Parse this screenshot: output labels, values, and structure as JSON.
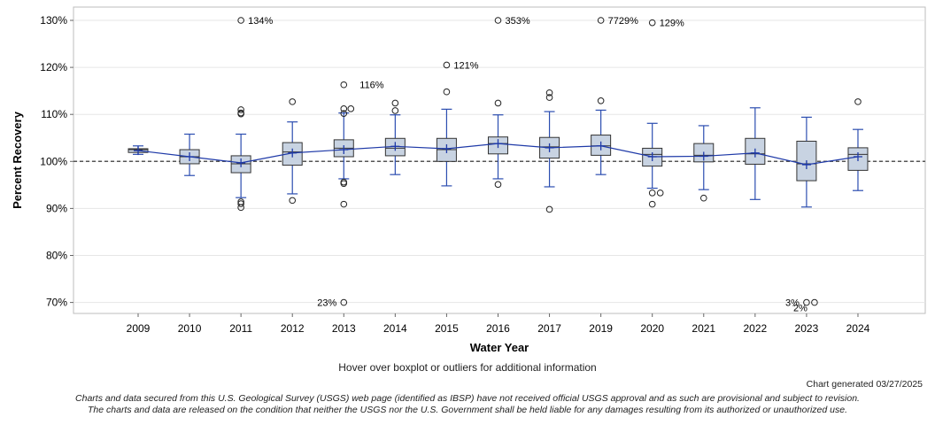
{
  "chart_data": {
    "type": "boxplot",
    "xlabel": "Water Year",
    "ylabel": "Percent Recovery",
    "ylim": [
      68,
      132
    ],
    "yticks": [
      70,
      80,
      90,
      100,
      110,
      120,
      130
    ],
    "ytick_labels": [
      "70%",
      "80%",
      "90%",
      "100%",
      "110%",
      "120%",
      "130%"
    ],
    "reference_line": 100,
    "categories": [
      "2009",
      "2010",
      "2011",
      "2012",
      "2013",
      "2014",
      "2015",
      "2016",
      "2017",
      "2019",
      "2020",
      "2021",
      "2022",
      "2023",
      "2024"
    ],
    "boxes": [
      {
        "year": "2009",
        "whisker_low": 101.5,
        "q1": 101.9,
        "median": 102.5,
        "q3": 102.7,
        "whisker_high": 103.3,
        "mean": 102.3
      },
      {
        "year": "2010",
        "whisker_low": 97.0,
        "q1": 99.5,
        "median": 101.0,
        "q3": 102.5,
        "whisker_high": 105.8,
        "mean": 101.0
      },
      {
        "year": "2011",
        "whisker_low": 92.3,
        "q1": 97.6,
        "median": 99.5,
        "q3": 101.2,
        "whisker_high": 105.8,
        "mean": 99.7
      },
      {
        "year": "2012",
        "whisker_low": 93.1,
        "q1": 99.2,
        "median": 102.0,
        "q3": 104.0,
        "whisker_high": 108.4,
        "mean": 101.8
      },
      {
        "year": "2013",
        "whisker_low": 96.3,
        "q1": 101.0,
        "median": 102.8,
        "q3": 104.6,
        "whisker_high": 110.3,
        "mean": 102.5
      },
      {
        "year": "2014",
        "whisker_low": 97.2,
        "q1": 101.2,
        "median": 102.8,
        "q3": 104.9,
        "whisker_high": 109.9,
        "mean": 103.2
      },
      {
        "year": "2015",
        "whisker_low": 94.8,
        "q1": 100.0,
        "median": 102.5,
        "q3": 104.9,
        "whisker_high": 111.1,
        "mean": 102.7
      },
      {
        "year": "2016",
        "whisker_low": 96.3,
        "q1": 101.6,
        "median": 103.8,
        "q3": 105.2,
        "whisker_high": 109.9,
        "mean": 103.8
      },
      {
        "year": "2017",
        "whisker_low": 94.6,
        "q1": 100.7,
        "median": 103.1,
        "q3": 105.1,
        "whisker_high": 110.6,
        "mean": 102.9
      },
      {
        "year": "2019",
        "whisker_low": 97.2,
        "q1": 101.3,
        "median": 103.3,
        "q3": 105.6,
        "whisker_high": 110.9,
        "mean": 103.3
      },
      {
        "year": "2020",
        "whisker_low": 94.3,
        "q1": 99.0,
        "median": 101.5,
        "q3": 102.8,
        "whisker_high": 108.1,
        "mean": 101.0
      },
      {
        "year": "2021",
        "whisker_low": 94.0,
        "q1": 99.9,
        "median": 101.3,
        "q3": 103.8,
        "whisker_high": 107.6,
        "mean": 101.1
      },
      {
        "year": "2022",
        "whisker_low": 91.9,
        "q1": 99.4,
        "median": 101.6,
        "q3": 104.9,
        "whisker_high": 111.4,
        "mean": 101.8
      },
      {
        "year": "2023",
        "whisker_low": 90.3,
        "q1": 95.9,
        "median": 99.5,
        "q3": 104.3,
        "whisker_high": 109.4,
        "mean": 99.3
      },
      {
        "year": "2024",
        "whisker_low": 93.8,
        "q1": 98.1,
        "median": 101.5,
        "q3": 102.9,
        "whisker_high": 106.8,
        "mean": 101.0
      }
    ],
    "outliers": [
      {
        "year": "2011",
        "value": 130,
        "label": "134%",
        "dx": 0
      },
      {
        "year": "2011",
        "value": 111.0,
        "dx": 0
      },
      {
        "year": "2011",
        "value": 110.3,
        "dx": 0
      },
      {
        "year": "2011",
        "value": 110.1,
        "dx": 0
      },
      {
        "year": "2011",
        "value": 91.4,
        "dx": 0
      },
      {
        "year": "2011",
        "value": 91.0,
        "dx": 0
      },
      {
        "year": "2011",
        "value": 90.2,
        "dx": 0
      },
      {
        "year": "2012",
        "value": 112.7,
        "dx": 0
      },
      {
        "year": "2012",
        "value": 91.7,
        "dx": 0
      },
      {
        "year": "2013",
        "value": 116.3,
        "label": "116%",
        "dx": 0
      },
      {
        "year": "2013",
        "value": 111.2,
        "dx": 0
      },
      {
        "year": "2013",
        "value": 111.2,
        "dx": 8
      },
      {
        "year": "2013",
        "value": 110.2,
        "dx": 0
      },
      {
        "year": "2013",
        "value": 95.6,
        "dx": 0
      },
      {
        "year": "2013",
        "value": 95.3,
        "dx": 0
      },
      {
        "year": "2013",
        "value": 90.9,
        "dx": 0
      },
      {
        "year": "2013",
        "value": 70,
        "label": "23%",
        "dx": 0
      },
      {
        "year": "2014",
        "value": 112.4,
        "dx": 0
      },
      {
        "year": "2014",
        "value": 110.8,
        "dx": 0
      },
      {
        "year": "2015",
        "value": 120.5,
        "label": "121%",
        "dx": 0
      },
      {
        "year": "2015",
        "value": 114.8,
        "dx": 0
      },
      {
        "year": "2016",
        "value": 130,
        "label": "353%",
        "dx": 0
      },
      {
        "year": "2016",
        "value": 112.4,
        "dx": 0
      },
      {
        "year": "2016",
        "value": 95.1,
        "dx": 0
      },
      {
        "year": "2017",
        "value": 114.6,
        "dx": 0
      },
      {
        "year": "2017",
        "value": 113.6,
        "dx": 0
      },
      {
        "year": "2017",
        "value": 89.8,
        "dx": 0
      },
      {
        "year": "2019",
        "value": 130,
        "label": "7729%",
        "dx": 0
      },
      {
        "year": "2019",
        "value": 112.9,
        "dx": 0
      },
      {
        "year": "2020",
        "value": 129.5,
        "label": "129%",
        "dx": 0
      },
      {
        "year": "2020",
        "value": 93.3,
        "dx": 0
      },
      {
        "year": "2020",
        "value": 93.3,
        "dx": 9
      },
      {
        "year": "2020",
        "value": 90.9,
        "dx": 0
      },
      {
        "year": "2021",
        "value": 92.2,
        "dx": 0
      },
      {
        "year": "2023",
        "value": 70,
        "label": "3%",
        "dx": 0
      },
      {
        "year": "2023",
        "value": 70,
        "label": "2%",
        "dx": 9
      },
      {
        "year": "2024",
        "value": 112.7,
        "dx": 0
      }
    ],
    "colors": {
      "box_fill": "#c8d3e2",
      "box_edge": "#333333",
      "whisker": "#2b4db0",
      "mean_line": "#1f3aa8",
      "grid": "#e6e6e6",
      "ref_line": "#555555"
    }
  },
  "footer": {
    "hover_note": "Hover over boxplot or outliers for additional information",
    "generated": "Chart generated 03/27/2025",
    "disclaimer_line1": "Charts and data secured from this U.S. Geological Survey (USGS) web page (identified as IBSP) have not received official USGS approval and as such are provisional and subject to revision.",
    "disclaimer_line2": "The charts and data are released on the condition that neither the USGS nor the U.S. Government shall be held liable for any damages resulting from its authorized or unauthorized use."
  }
}
